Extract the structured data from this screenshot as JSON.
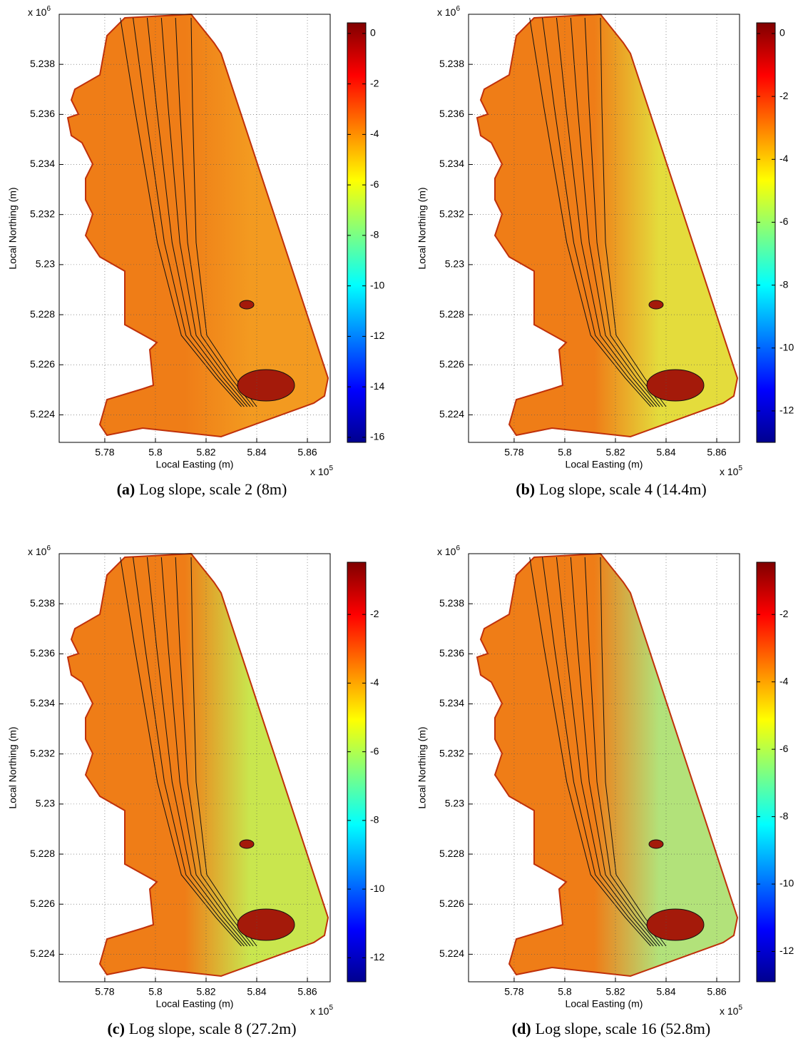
{
  "chart_data": [
    {
      "type": "map",
      "xlabel": "Local Easting  (m)",
      "ylabel": "Local Northing (m)",
      "x_multiplier": {
        "base": "x 10",
        "exponent": "5"
      },
      "y_multiplier": {
        "base": "x 10",
        "exponent": "6"
      },
      "xlim": [
        5.762,
        5.869
      ],
      "xticks": [
        5.78,
        5.8,
        5.82,
        5.84,
        5.86
      ],
      "ylim": [
        5.2229,
        5.24
      ],
      "yticks": [
        5.224,
        5.226,
        5.228,
        5.23,
        5.232,
        5.234,
        5.236,
        5.238
      ],
      "grid": true,
      "colorbar": {
        "colormap": "jet",
        "clim": [
          -16.2,
          0.42
        ],
        "ticks": [
          0,
          -2,
          -4,
          -6,
          -8,
          -10,
          -12,
          -14,
          -16
        ]
      },
      "caption": {
        "label": "(a)",
        "text": "Log slope, scale 2 (8m)"
      }
    },
    {
      "type": "map",
      "xlabel": "Local Easting  (m)",
      "ylabel": "Local Northing (m)",
      "x_multiplier": {
        "base": "x 10",
        "exponent": "5"
      },
      "y_multiplier": {
        "base": "x 10",
        "exponent": "6"
      },
      "xlim": [
        5.762,
        5.869
      ],
      "xticks": [
        5.78,
        5.8,
        5.82,
        5.84,
        5.86
      ],
      "ylim": [
        5.2229,
        5.24
      ],
      "yticks": [
        5.224,
        5.226,
        5.228,
        5.23,
        5.232,
        5.234,
        5.236,
        5.238
      ],
      "grid": true,
      "colorbar": {
        "colormap": "jet",
        "clim": [
          -13,
          0.34
        ],
        "ticks": [
          0,
          -2,
          -4,
          -6,
          -8,
          -10,
          -12
        ]
      },
      "caption": {
        "label": "(b)",
        "text": "Log slope, scale 4 (14.4m)"
      }
    },
    {
      "type": "map",
      "xlabel": "Local Easting  (m)",
      "ylabel": "Local Northing (m)",
      "x_multiplier": {
        "base": "x 10",
        "exponent": "5"
      },
      "y_multiplier": {
        "base": "x 10",
        "exponent": "6"
      },
      "xlim": [
        5.762,
        5.869
      ],
      "xticks": [
        5.78,
        5.8,
        5.82,
        5.84,
        5.86
      ],
      "ylim": [
        5.2229,
        5.24
      ],
      "yticks": [
        5.224,
        5.226,
        5.228,
        5.23,
        5.232,
        5.234,
        5.236,
        5.238
      ],
      "grid": true,
      "colorbar": {
        "colormap": "jet",
        "clim": [
          -12.7,
          -0.48
        ],
        "ticks": [
          -2,
          -4,
          -6,
          -8,
          -10,
          -12
        ]
      },
      "caption": {
        "label": "(c)",
        "text": "Log slope, scale 8 (27.2m)"
      }
    },
    {
      "type": "map",
      "xlabel": "Local Easting  (m)",
      "ylabel": "Local Northing (m)",
      "x_multiplier": {
        "base": "x 10",
        "exponent": "5"
      },
      "y_multiplier": {
        "base": "x 10",
        "exponent": "6"
      },
      "xlim": [
        5.762,
        5.869
      ],
      "xticks": [
        5.78,
        5.8,
        5.82,
        5.84,
        5.86
      ],
      "ylim": [
        5.2229,
        5.24
      ],
      "yticks": [
        5.224,
        5.226,
        5.228,
        5.23,
        5.232,
        5.234,
        5.236,
        5.238
      ],
      "grid": true,
      "colorbar": {
        "colormap": "jet",
        "clim": [
          -12.9,
          -0.45
        ],
        "ticks": [
          -2,
          -4,
          -6,
          -8,
          -10,
          -12
        ]
      },
      "caption": {
        "label": "(d)",
        "text": "Log slope, scale 16 (52.8m)"
      }
    }
  ]
}
